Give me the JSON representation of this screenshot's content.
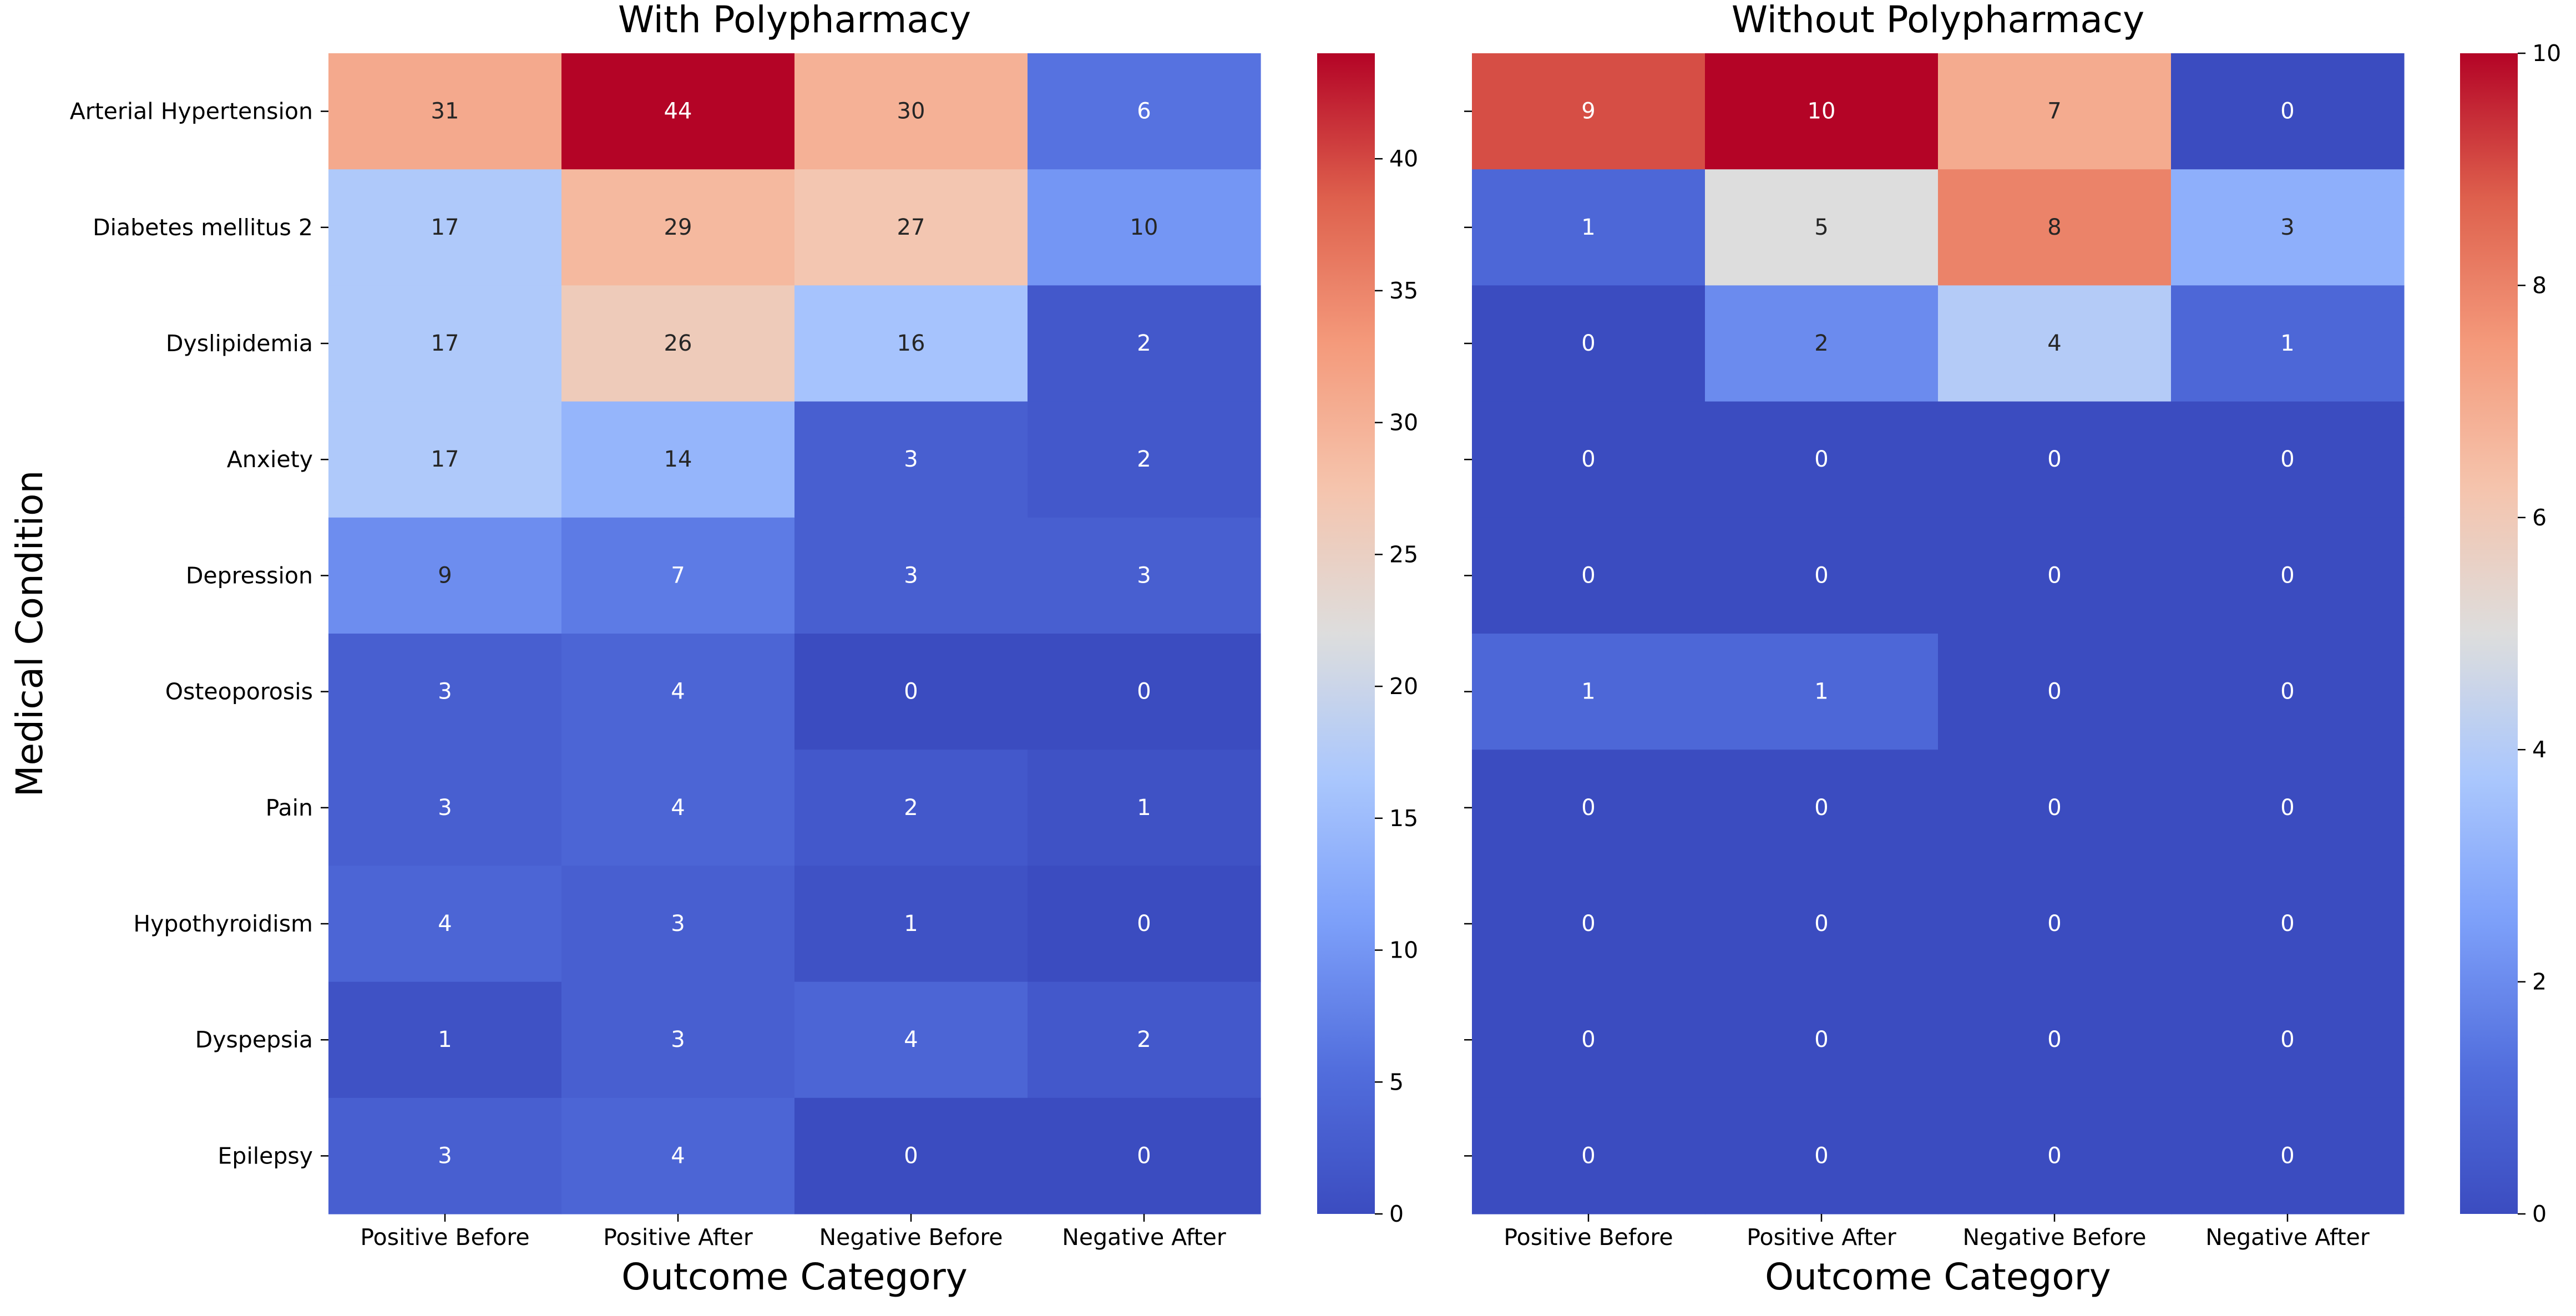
{
  "chart_data": [
    {
      "type": "heatmap",
      "title": "With Polypharmacy",
      "xlabel": "Outcome Category",
      "ylabel": "Medical Condition",
      "x_categories": [
        "Positive Before",
        "Positive After",
        "Negative Before",
        "Negative After"
      ],
      "y_categories": [
        "Arterial Hypertension",
        "Diabetes mellitus 2",
        "Dyslipidemia",
        "Anxiety",
        "Depression",
        "Osteoporosis",
        "Pain",
        "Hypothyroidism",
        "Dyspepsia",
        "Epilepsy"
      ],
      "values": [
        [
          31,
          44,
          30,
          6
        ],
        [
          17,
          29,
          27,
          10
        ],
        [
          17,
          26,
          16,
          2
        ],
        [
          17,
          14,
          3,
          2
        ],
        [
          9,
          7,
          3,
          3
        ],
        [
          3,
          4,
          0,
          0
        ],
        [
          3,
          4,
          2,
          1
        ],
        [
          4,
          3,
          1,
          0
        ],
        [
          1,
          3,
          4,
          2
        ],
        [
          3,
          4,
          0,
          0
        ]
      ],
      "colormap": "coolwarm",
      "vmin": 0,
      "vmax": 44,
      "colorbar_ticks": [
        0,
        5,
        10,
        15,
        20,
        25,
        30,
        35,
        40
      ],
      "annotations": true
    },
    {
      "type": "heatmap",
      "title": "Without Polypharmacy",
      "xlabel": "Outcome Category",
      "ylabel": "",
      "x_categories": [
        "Positive Before",
        "Positive After",
        "Negative Before",
        "Negative After"
      ],
      "y_categories": [
        "Arterial Hypertension",
        "Diabetes mellitus 2",
        "Dyslipidemia",
        "Anxiety",
        "Depression",
        "Osteoporosis",
        "Pain",
        "Hypothyroidism",
        "Dyspepsia",
        "Epilepsy"
      ],
      "y_tick_labels_shown": false,
      "values": [
        [
          9,
          10,
          7,
          0
        ],
        [
          1,
          5,
          8,
          3
        ],
        [
          0,
          2,
          4,
          1
        ],
        [
          0,
          0,
          0,
          0
        ],
        [
          0,
          0,
          0,
          0
        ],
        [
          1,
          1,
          0,
          0
        ],
        [
          0,
          0,
          0,
          0
        ],
        [
          0,
          0,
          0,
          0
        ],
        [
          0,
          0,
          0,
          0
        ],
        [
          0,
          0,
          0,
          0
        ]
      ],
      "colormap": "coolwarm",
      "vmin": 0,
      "vmax": 10,
      "colorbar_ticks": [
        0,
        2,
        4,
        6,
        8,
        10
      ],
      "annotations": true
    }
  ]
}
